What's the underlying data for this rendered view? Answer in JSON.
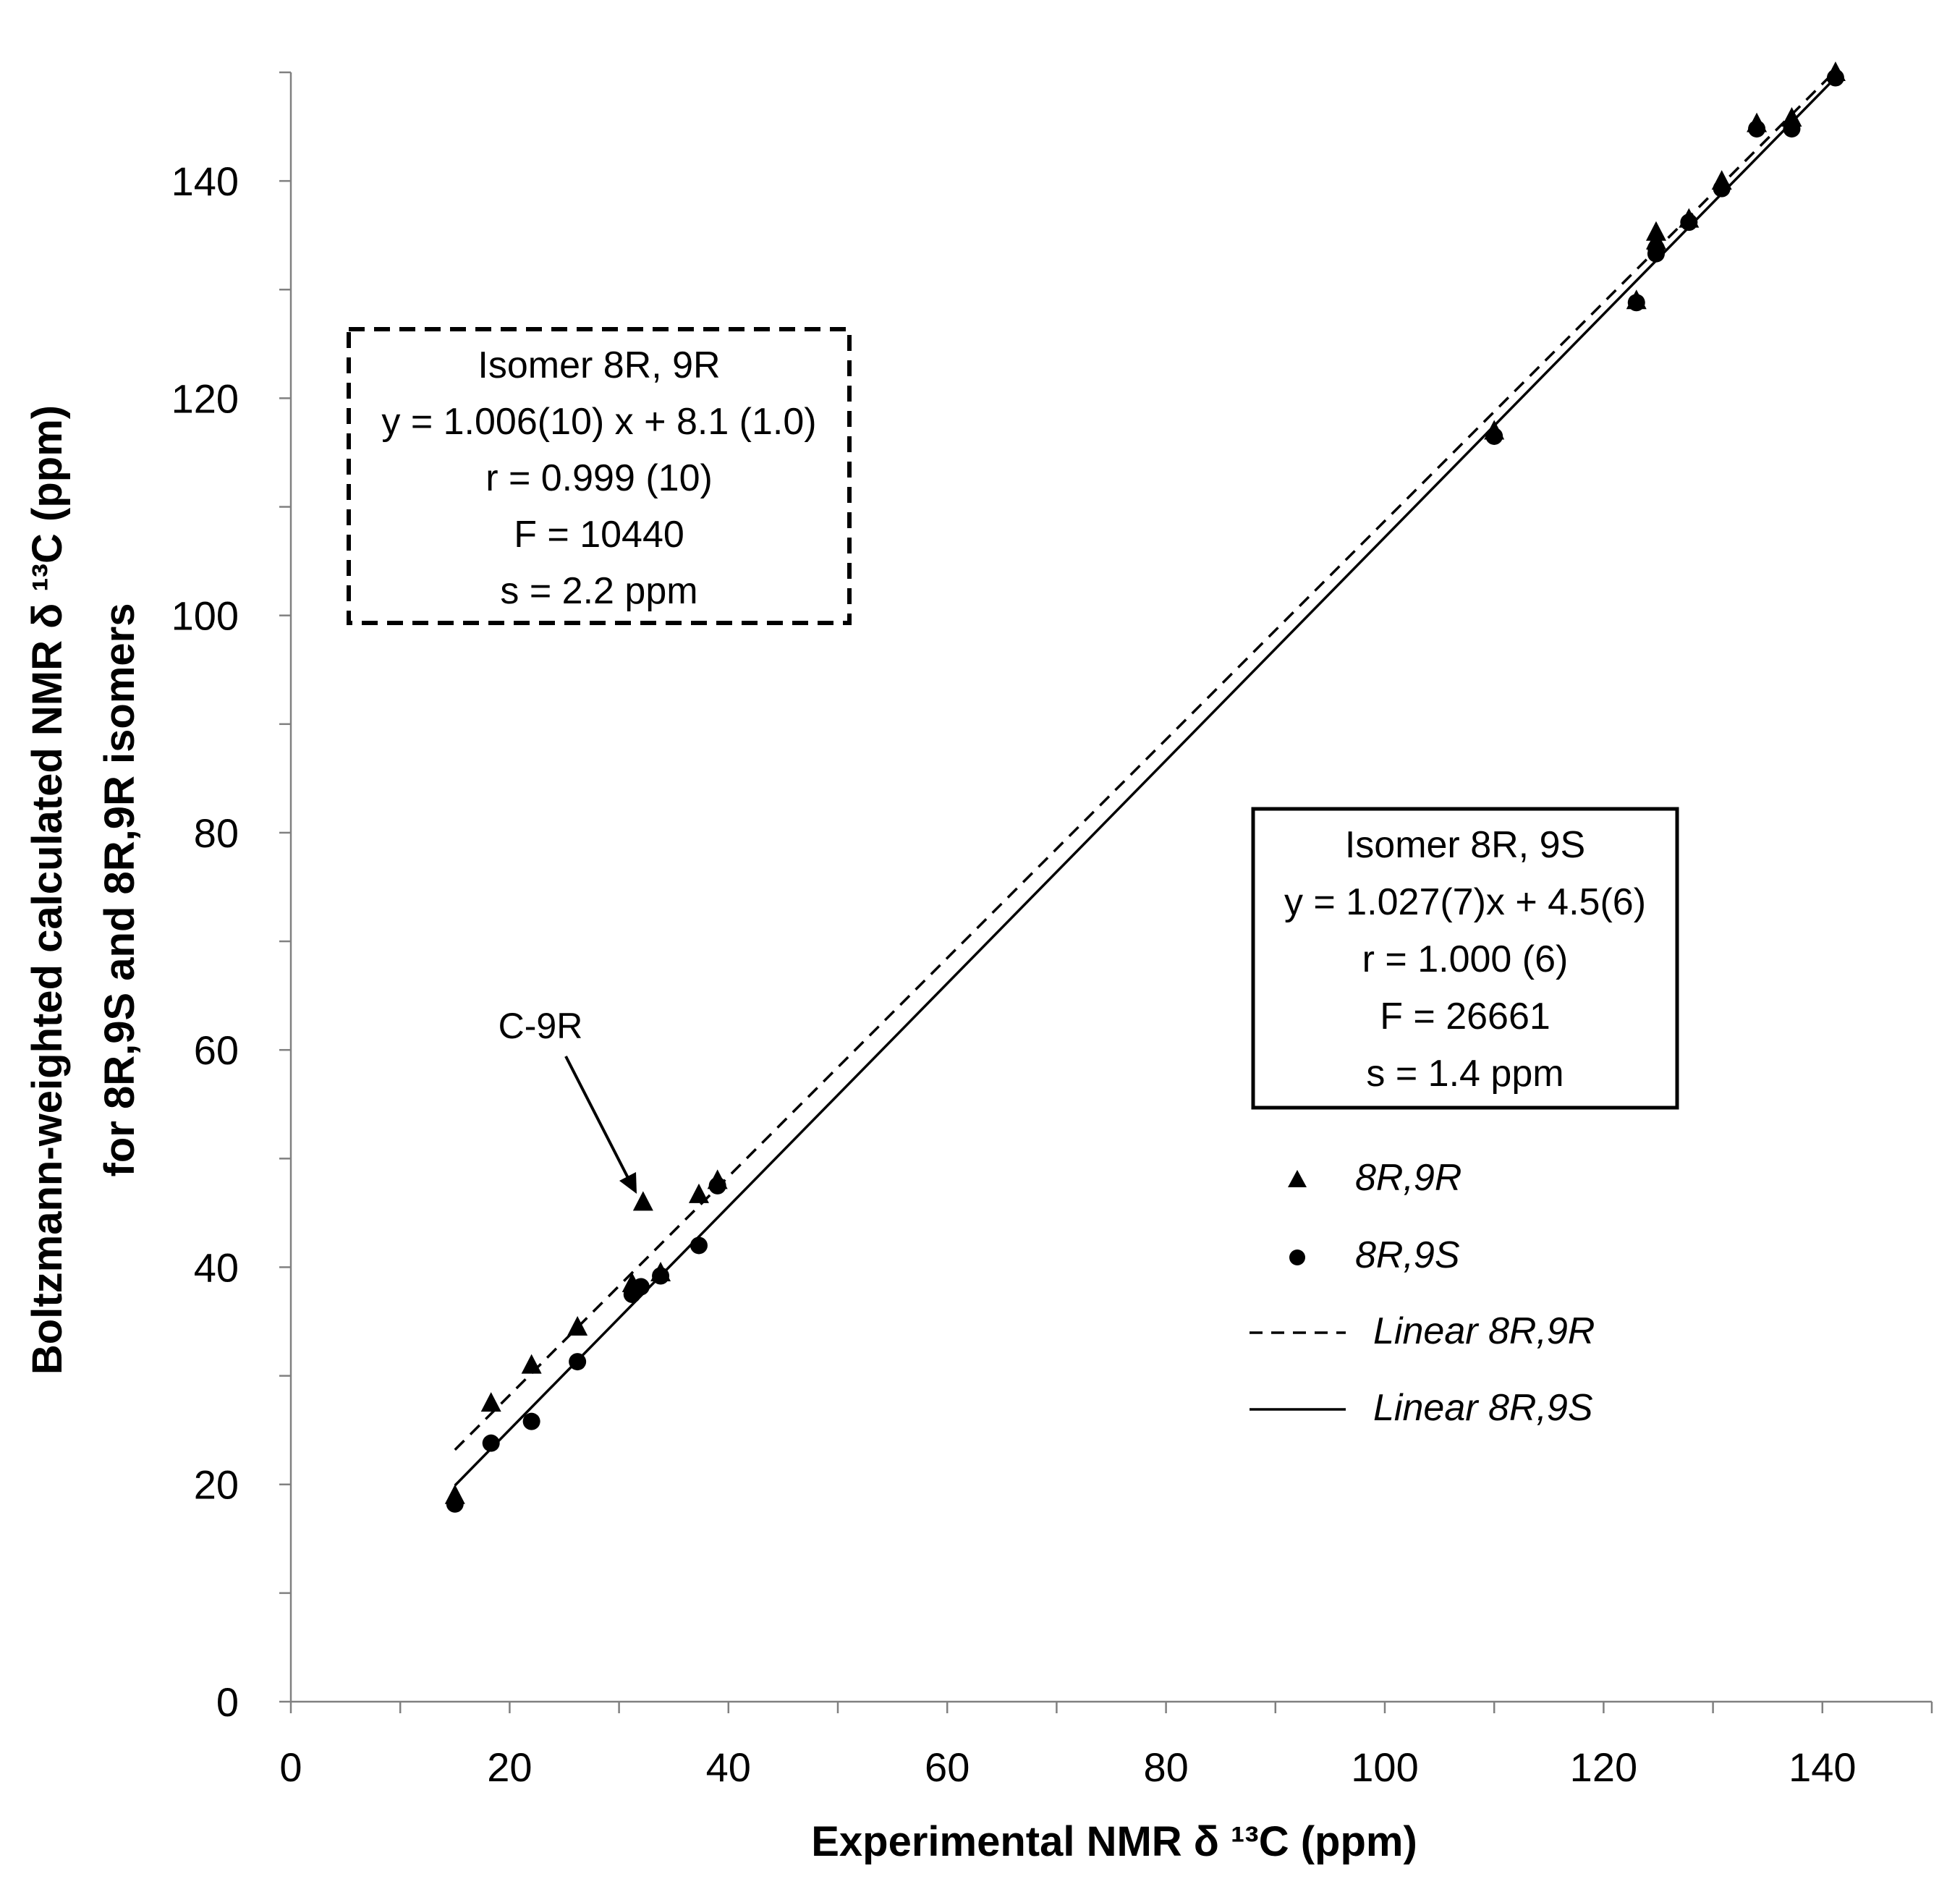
{
  "chart_data": {
    "type": "scatter",
    "xlabel": "Experimental  NMR δ ¹³C (ppm)",
    "ylabel_line1": "Boltzmann-weighted calculated  NMR δ ¹³C (ppm)",
    "ylabel_line2": "for 8R,9S and 8R,9R isomers",
    "xlim": [
      0,
      150
    ],
    "ylim": [
      0,
      150
    ],
    "x_ticks": [
      0,
      20,
      40,
      60,
      80,
      100,
      120,
      140
    ],
    "y_ticks": [
      0,
      20,
      40,
      60,
      80,
      100,
      120,
      140
    ],
    "x_minor_step": 10,
    "y_minor_step": 10,
    "series": [
      {
        "name": "8R,9R",
        "marker": "triangle",
        "points": [
          [
            15,
            19
          ],
          [
            18.3,
            27.5
          ],
          [
            22,
            31
          ],
          [
            26.2,
            34.5
          ],
          [
            31.2,
            38.5
          ],
          [
            32.2,
            46
          ],
          [
            33.8,
            39.5
          ],
          [
            37.3,
            46.7
          ],
          [
            39,
            48
          ],
          [
            110,
            117
          ],
          [
            123,
            129
          ],
          [
            124.8,
            135.3
          ],
          [
            124.8,
            134.5
          ],
          [
            127.8,
            136.5
          ],
          [
            130.8,
            140
          ],
          [
            134,
            145.3
          ],
          [
            137.2,
            145.8
          ],
          [
            141.2,
            150
          ]
        ]
      },
      {
        "name": "8R,9S",
        "marker": "circle",
        "points": [
          [
            15,
            18.2
          ],
          [
            18.3,
            23.8
          ],
          [
            22,
            25.8
          ],
          [
            26.2,
            31.3
          ],
          [
            31.2,
            37.5
          ],
          [
            32,
            38.2
          ],
          [
            33.8,
            39.2
          ],
          [
            37.3,
            42
          ],
          [
            39,
            47.5
          ],
          [
            110,
            116.5
          ],
          [
            123,
            128.8
          ],
          [
            124.8,
            133.3
          ],
          [
            124.8,
            133.8
          ],
          [
            127.8,
            136.2
          ],
          [
            130.8,
            139.3
          ],
          [
            134,
            144.8
          ],
          [
            137.2,
            144.8
          ],
          [
            141.2,
            149.5
          ]
        ]
      }
    ],
    "fits": [
      {
        "name": "Linear 8R,9R",
        "style": "dashed",
        "slope": 1.006,
        "intercept": 8.1,
        "x_range": [
          15,
          141.2
        ]
      },
      {
        "name": "Linear 8R,9S",
        "style": "solid",
        "slope": 1.027,
        "intercept": 4.5,
        "x_range": [
          15,
          141.2
        ]
      }
    ],
    "legend": [
      {
        "marker": "triangle",
        "label": "8R,9R"
      },
      {
        "marker": "circle",
        "label": "8R,9S"
      },
      {
        "marker": "dashed-line",
        "label": "Linear 8R,9R"
      },
      {
        "marker": "solid-line",
        "label": "Linear 8R,9S"
      }
    ],
    "annotation": {
      "text": "C-9R",
      "target": [
        32.2,
        47
      ]
    },
    "stat_boxes": [
      {
        "id": "8R9R",
        "border": "dashed",
        "lines": [
          "Isomer 8R, 9R",
          "y = 1.006(10) x + 8.1 (1.0)",
          "r = 0.999 (10)",
          "F = 10440",
          "s = 2.2 ppm"
        ]
      },
      {
        "id": "8R9S",
        "border": "solid",
        "lines": [
          "Isomer 8R, 9S",
          "y = 1.027(7)x + 4.5(6)",
          "r = 1.000 (6)",
          "F = 26661",
          "s = 1.4 ppm"
        ]
      }
    ]
  }
}
